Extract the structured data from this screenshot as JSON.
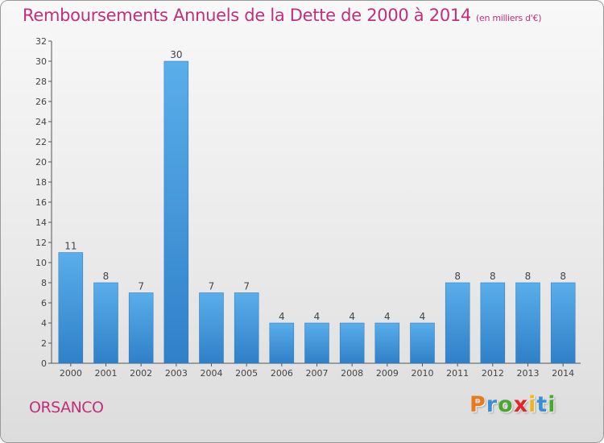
{
  "chart_data": {
    "type": "bar",
    "title": "Remboursements Annuels de la Dette de 2000 à 2014",
    "unit_label": "(en milliers d'€)",
    "categories": [
      "2000",
      "2001",
      "2002",
      "2003",
      "2004",
      "2005",
      "2006",
      "2007",
      "2008",
      "2009",
      "2010",
      "2011",
      "2012",
      "2013",
      "2014"
    ],
    "values": [
      11,
      8,
      7,
      30,
      7,
      7,
      4,
      4,
      4,
      4,
      4,
      8,
      8,
      8,
      8
    ],
    "ylim": [
      0,
      32
    ],
    "ytick_step": 2,
    "grid": false,
    "bar_color": "#3d8fd6"
  },
  "commune": "ORSANCO",
  "brand": {
    "letters": [
      "P",
      "r",
      "o",
      "x",
      "i",
      "t",
      "i"
    ],
    "colors": [
      "#e87a1e",
      "#3a8fd4",
      "#4aa832",
      "#e4262a",
      "#f0b41c",
      "#3a8fd4",
      "#4aa832"
    ]
  }
}
